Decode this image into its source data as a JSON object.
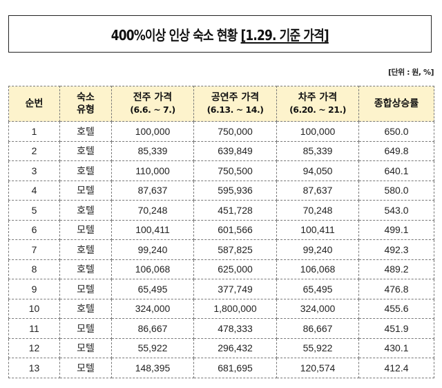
{
  "title": {
    "main": "400%이상 인상 숙소 현황 ",
    "sub": "[1.29. 기준 가격]"
  },
  "unit_label": "[단위 : 원, %]",
  "table": {
    "headers": [
      {
        "line1": "순번",
        "line2": ""
      },
      {
        "line1": "숙소",
        "line2": "유형"
      },
      {
        "line1": "전주 가격",
        "line2": "(6.6. ~ 7.)"
      },
      {
        "line1": "공연주 가격",
        "line2": "(6.13. ~ 14.)"
      },
      {
        "line1": "차주 가격",
        "line2": "(6.20. ~ 21.)"
      },
      {
        "line1": "종합상승률",
        "line2": ""
      }
    ],
    "header_bg": "#fdf3cc",
    "rows": [
      {
        "no": "1",
        "type": "호텔",
        "prev_week": "100,000",
        "concert_week": "750,000",
        "next_week": "100,000",
        "rate": "650.0"
      },
      {
        "no": "2",
        "type": "호텔",
        "prev_week": "85,339",
        "concert_week": "639,849",
        "next_week": "85,339",
        "rate": "649.8"
      },
      {
        "no": "3",
        "type": "호텔",
        "prev_week": "110,000",
        "concert_week": "750,500",
        "next_week": "94,050",
        "rate": "640.1"
      },
      {
        "no": "4",
        "type": "모텔",
        "prev_week": "87,637",
        "concert_week": "595,936",
        "next_week": "87,637",
        "rate": "580.0"
      },
      {
        "no": "5",
        "type": "호텔",
        "prev_week": "70,248",
        "concert_week": "451,728",
        "next_week": "70,248",
        "rate": "543.0"
      },
      {
        "no": "6",
        "type": "모텔",
        "prev_week": "100,411",
        "concert_week": "601,566",
        "next_week": "100,411",
        "rate": "499.1"
      },
      {
        "no": "7",
        "type": "호텔",
        "prev_week": "99,240",
        "concert_week": "587,825",
        "next_week": "99,240",
        "rate": "492.3"
      },
      {
        "no": "8",
        "type": "호텔",
        "prev_week": "106,068",
        "concert_week": "625,000",
        "next_week": "106,068",
        "rate": "489.2"
      },
      {
        "no": "9",
        "type": "모텔",
        "prev_week": "65,495",
        "concert_week": "377,749",
        "next_week": "65,495",
        "rate": "476.8"
      },
      {
        "no": "10",
        "type": "호텔",
        "prev_week": "324,000",
        "concert_week": "1,800,000",
        "next_week": "324,000",
        "rate": "455.6"
      },
      {
        "no": "11",
        "type": "모텔",
        "prev_week": "86,667",
        "concert_week": "478,333",
        "next_week": "86,667",
        "rate": "451.9"
      },
      {
        "no": "12",
        "type": "모텔",
        "prev_week": "55,922",
        "concert_week": "296,432",
        "next_week": "55,922",
        "rate": "430.1"
      },
      {
        "no": "13",
        "type": "모텔",
        "prev_week": "148,395",
        "concert_week": "681,695",
        "next_week": "120,574",
        "rate": "412.4"
      }
    ]
  }
}
